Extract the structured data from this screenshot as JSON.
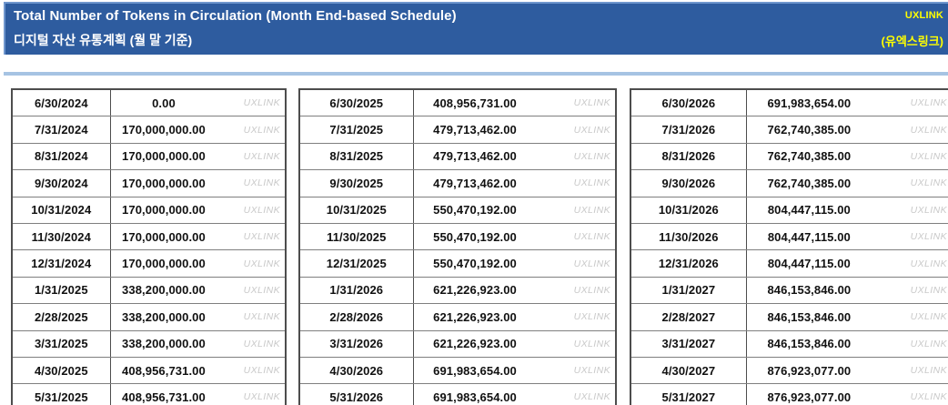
{
  "header": {
    "title_en": "Total Number of Tokens in Circulation (Month End-based Schedule)",
    "title_ko": "디지털 자산 유통계획 (월 말 기준)",
    "brand_en": "UXLINK",
    "brand_ko": "(유엑스링크)"
  },
  "watermark_label": "UXLINK",
  "colors": {
    "header_bg": "#2e5c9f",
    "brand_yellow": "#ffff00",
    "separator_blue": "#a6c3e3",
    "table_border": "#4d4d4d",
    "watermark_gray": "#c9c9c9"
  },
  "column_semantics": {
    "date": "month-end date",
    "value": "total tokens in circulation"
  },
  "schedule_tables": [
    {
      "rows": [
        {
          "date": "6/30/2024",
          "value": "0.00"
        },
        {
          "date": "7/31/2024",
          "value": "170,000,000.00"
        },
        {
          "date": "8/31/2024",
          "value": "170,000,000.00"
        },
        {
          "date": "9/30/2024",
          "value": "170,000,000.00"
        },
        {
          "date": "10/31/2024",
          "value": "170,000,000.00"
        },
        {
          "date": "11/30/2024",
          "value": "170,000,000.00"
        },
        {
          "date": "12/31/2024",
          "value": "170,000,000.00"
        },
        {
          "date": "1/31/2025",
          "value": "338,200,000.00"
        },
        {
          "date": "2/28/2025",
          "value": "338,200,000.00"
        },
        {
          "date": "3/31/2025",
          "value": "338,200,000.00"
        },
        {
          "date": "4/30/2025",
          "value": "408,956,731.00"
        },
        {
          "date": "5/31/2025",
          "value": "408,956,731.00"
        }
      ]
    },
    {
      "rows": [
        {
          "date": "6/30/2025",
          "value": "408,956,731.00"
        },
        {
          "date": "7/31/2025",
          "value": "479,713,462.00"
        },
        {
          "date": "8/31/2025",
          "value": "479,713,462.00"
        },
        {
          "date": "9/30/2025",
          "value": "479,713,462.00"
        },
        {
          "date": "10/31/2025",
          "value": "550,470,192.00"
        },
        {
          "date": "11/30/2025",
          "value": "550,470,192.00"
        },
        {
          "date": "12/31/2025",
          "value": "550,470,192.00"
        },
        {
          "date": "1/31/2026",
          "value": "621,226,923.00"
        },
        {
          "date": "2/28/2026",
          "value": "621,226,923.00"
        },
        {
          "date": "3/31/2026",
          "value": "621,226,923.00"
        },
        {
          "date": "4/30/2026",
          "value": "691,983,654.00"
        },
        {
          "date": "5/31/2026",
          "value": "691,983,654.00"
        }
      ]
    },
    {
      "rows": [
        {
          "date": "6/30/2026",
          "value": "691,983,654.00"
        },
        {
          "date": "7/31/2026",
          "value": "762,740,385.00"
        },
        {
          "date": "8/31/2026",
          "value": "762,740,385.00"
        },
        {
          "date": "9/30/2026",
          "value": "762,740,385.00"
        },
        {
          "date": "10/31/2026",
          "value": "804,447,115.00"
        },
        {
          "date": "11/30/2026",
          "value": "804,447,115.00"
        },
        {
          "date": "12/31/2026",
          "value": "804,447,115.00"
        },
        {
          "date": "1/31/2027",
          "value": "846,153,846.00"
        },
        {
          "date": "2/28/2027",
          "value": "846,153,846.00"
        },
        {
          "date": "3/31/2027",
          "value": "846,153,846.00"
        },
        {
          "date": "4/30/2027",
          "value": "876,923,077.00"
        },
        {
          "date": "5/31/2027",
          "value": "876,923,077.00"
        }
      ]
    }
  ]
}
